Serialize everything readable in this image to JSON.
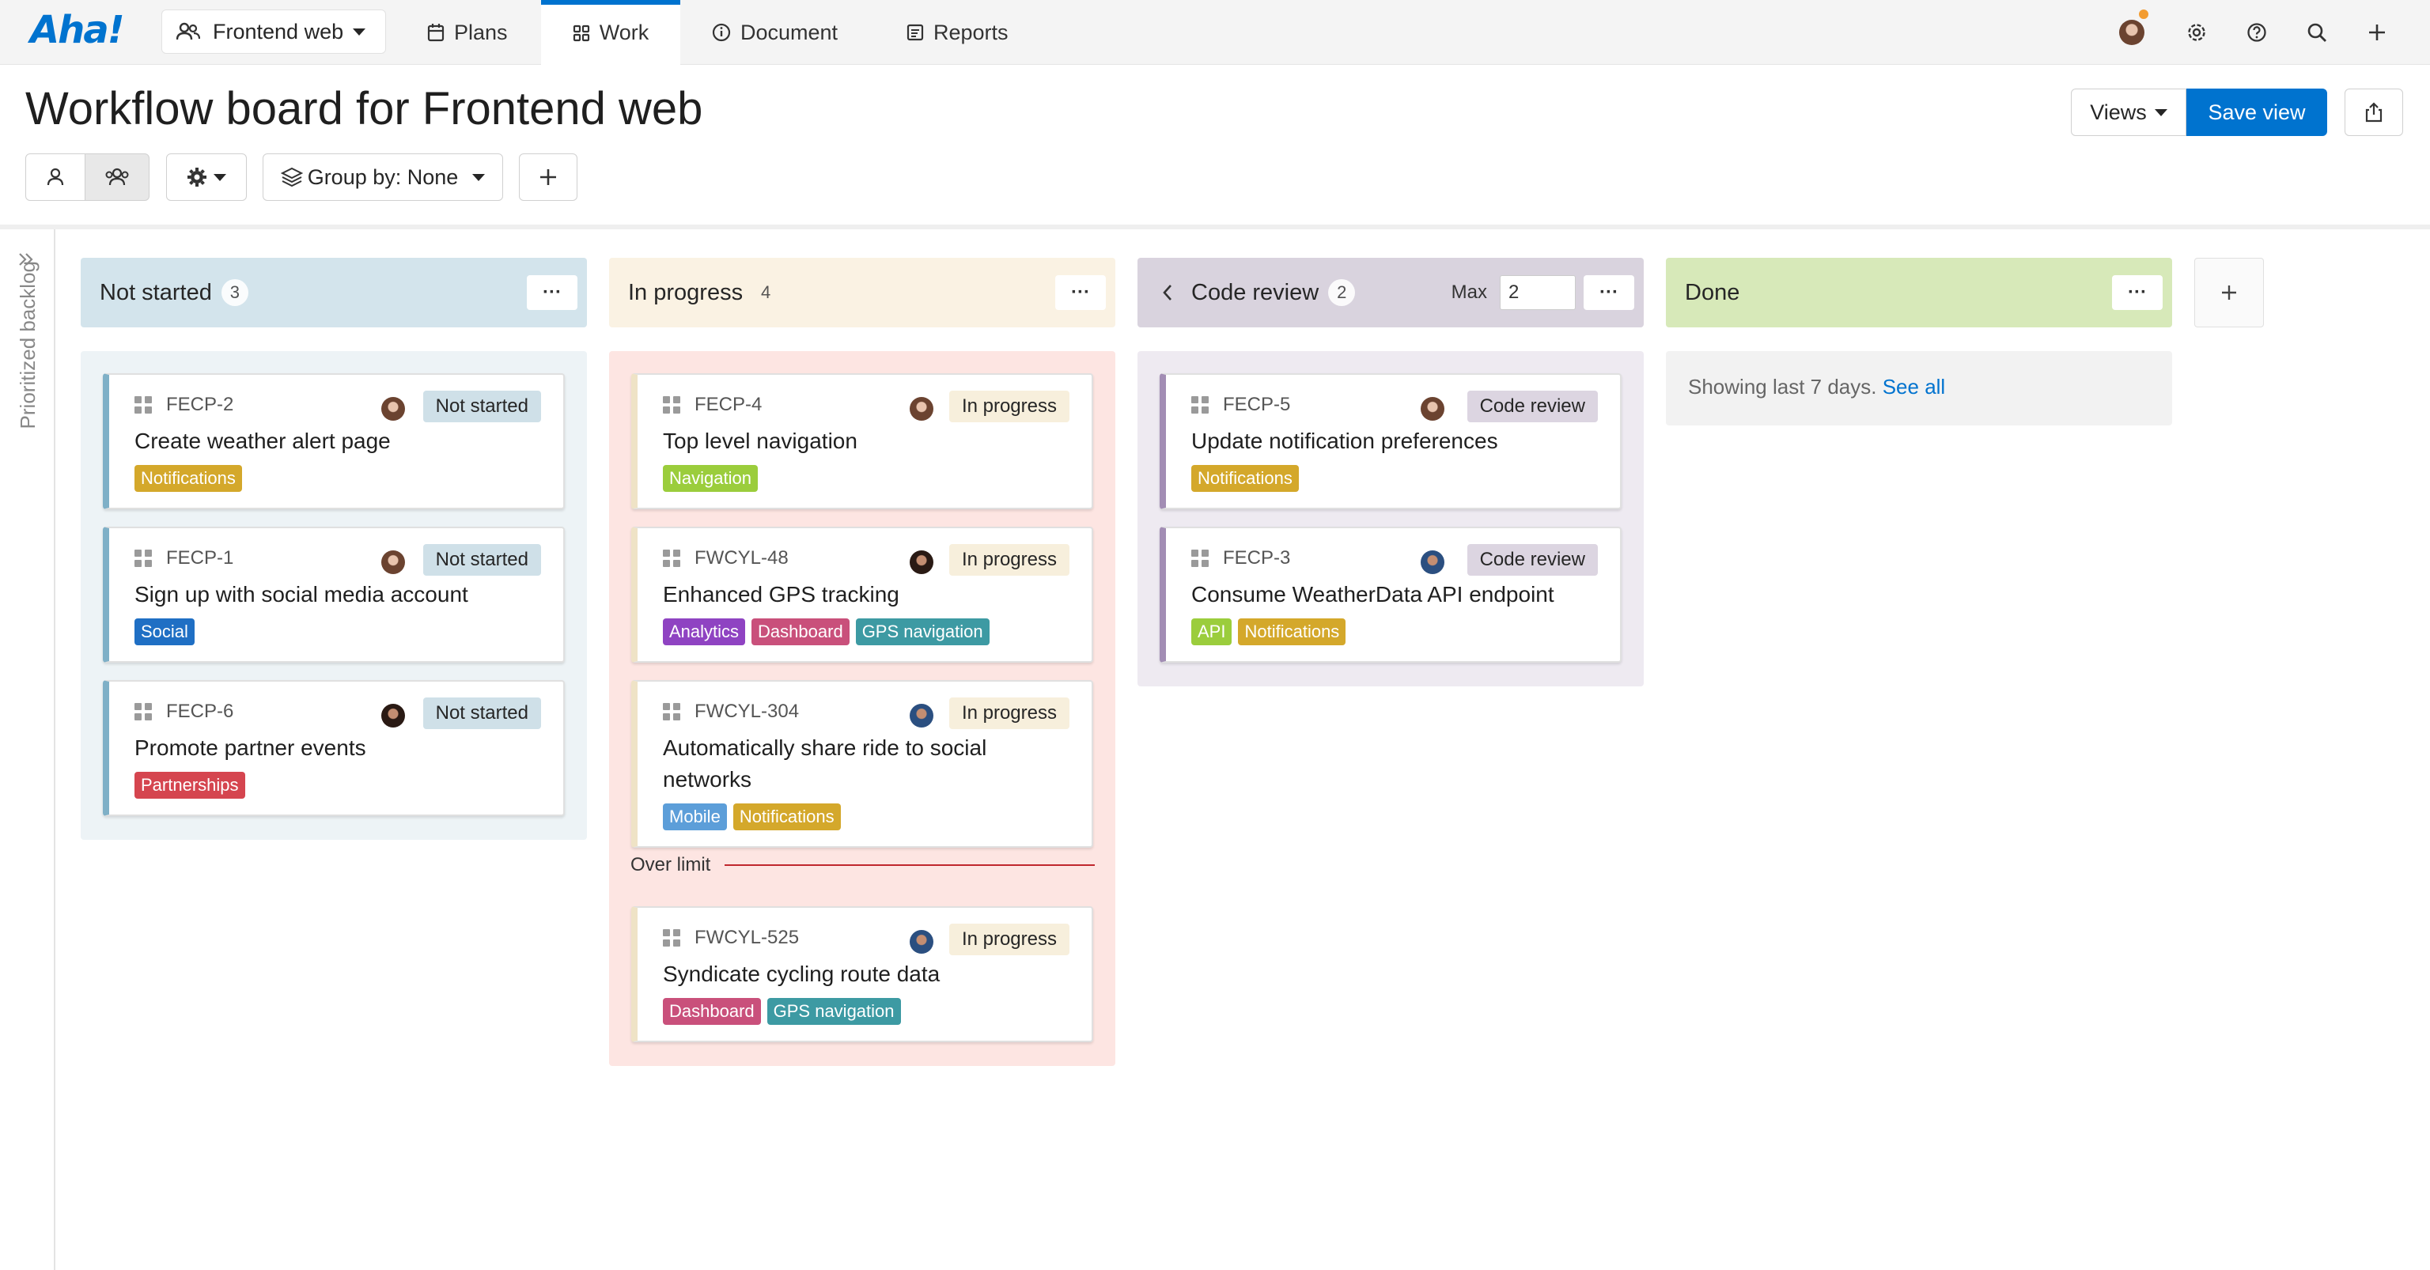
{
  "app": {
    "logo": "Aha!"
  },
  "nav": {
    "workspace": "Frontend web",
    "tabs": [
      {
        "label": "Plans",
        "icon": "calendar-icon"
      },
      {
        "label": "Work",
        "icon": "grid-icon",
        "active": true
      },
      {
        "label": "Document",
        "icon": "info-icon"
      },
      {
        "label": "Reports",
        "icon": "reports-icon"
      }
    ]
  },
  "page": {
    "title": "Workflow board for Frontend web"
  },
  "toolbar": {
    "group_by": "Group by: None",
    "views": "Views",
    "save_view": "Save view"
  },
  "sidebar": {
    "label": "Prioritized backlog"
  },
  "columns": [
    {
      "name": "Not started",
      "count": "3",
      "head_color": "#d3e4ec",
      "body_color": "#edf3f6",
      "accent": "#7fb0c7",
      "badge_color": "#cfe0e8",
      "cards": [
        {
          "ref": "FECP-2",
          "status": "Not started",
          "title": "Create weather alert page",
          "tags": [
            {
              "label": "Notifications",
              "color": "#d4a82b"
            }
          ]
        },
        {
          "ref": "FECP-1",
          "status": "Not started",
          "title": "Sign up with social media account",
          "tags": [
            {
              "label": "Social",
              "color": "#1f6fc4"
            }
          ]
        },
        {
          "ref": "FECP-6",
          "status": "Not started",
          "title": "Promote partner events",
          "tags": [
            {
              "label": "Partnerships",
              "color": "#d5454f"
            }
          ]
        }
      ]
    },
    {
      "name": "In progress",
      "count": "4",
      "head_color": "#faf2e3",
      "body_color": "#fde5e2",
      "accent": "#efe3c6",
      "badge_color": "#f7efdc",
      "cards": [
        {
          "ref": "FECP-4",
          "status": "In progress",
          "title": "Top level navigation",
          "tags": [
            {
              "label": "Navigation",
              "color": "#9bcd3c"
            }
          ]
        },
        {
          "ref": "FWCYL-48",
          "status": "In progress",
          "title": "Enhanced GPS tracking",
          "tags": [
            {
              "label": "Analytics",
              "color": "#8f43c2"
            },
            {
              "label": "Dashboard",
              "color": "#c9507b"
            },
            {
              "label": "GPS navigation",
              "color": "#3d9aa3"
            }
          ]
        },
        {
          "ref": "FWCYL-304",
          "status": "In progress",
          "title": "Automatically share ride to social networks",
          "tags": [
            {
              "label": "Mobile",
              "color": "#5c9ed9"
            },
            {
              "label": "Notifications",
              "color": "#d4a82b"
            }
          ]
        }
      ],
      "over_limit_label": "Over limit",
      "over_cards": [
        {
          "ref": "FWCYL-525",
          "status": "In progress",
          "title": "Syndicate cycling route data",
          "tags": [
            {
              "label": "Dashboard",
              "color": "#c9507b"
            },
            {
              "label": "GPS navigation",
              "color": "#3d9aa3"
            }
          ]
        }
      ]
    },
    {
      "name": "Code review",
      "count": "2",
      "head_color": "#d9d3de",
      "body_color": "#eeeaf1",
      "accent": "#a28db4",
      "badge_color": "#dcd5e1",
      "max_label": "Max",
      "max_value": "2",
      "cards": [
        {
          "ref": "FECP-5",
          "status": "Code review",
          "title": "Update notification preferences",
          "tags": [
            {
              "label": "Notifications",
              "color": "#d4a82b"
            }
          ]
        },
        {
          "ref": "FECP-3",
          "status": "Code review",
          "title": "Consume WeatherData API endpoint",
          "tags": [
            {
              "label": "API",
              "color": "#9bcd3c"
            },
            {
              "label": "Notifications",
              "color": "#d4a82b"
            }
          ]
        }
      ]
    },
    {
      "name": "Done",
      "head_color": "#d7e9b9",
      "note": "Showing last 7 days.",
      "note_link": "See all"
    }
  ]
}
